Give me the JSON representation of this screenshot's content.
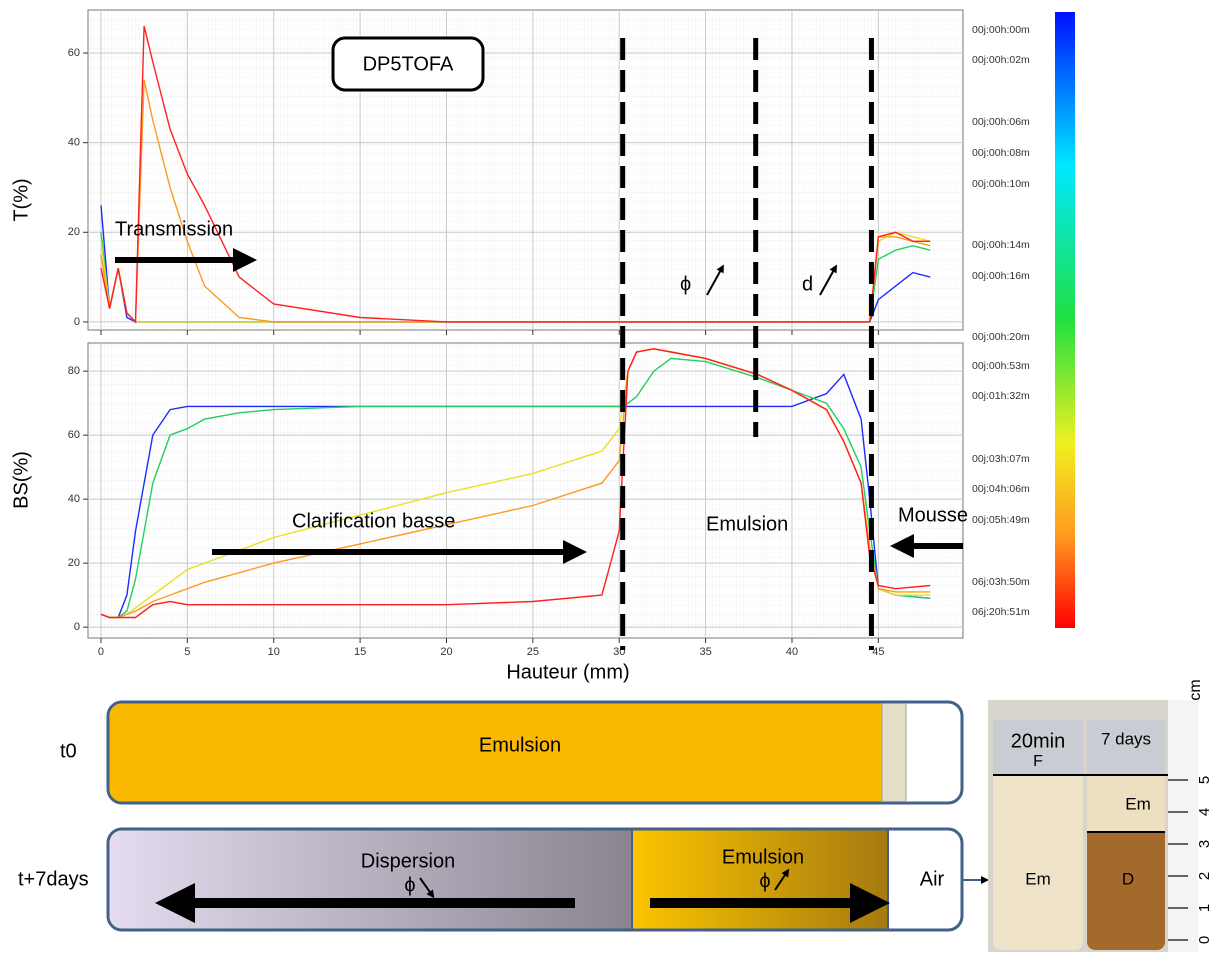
{
  "chart_data": [
    {
      "type": "line",
      "ylabel": "T(%)",
      "label": "DP5TOFA",
      "annotations": [
        "Transmission",
        "ϕ",
        "d"
      ],
      "xlim": [
        -0.75,
        49.9
      ],
      "ylim": [
        -1.8,
        69.6
      ],
      "yticks": [
        0,
        20,
        40,
        60
      ],
      "grid": true,
      "x": [
        0,
        0.5,
        1,
        1.5,
        2,
        2.5,
        3,
        4,
        5,
        6,
        8,
        10,
        15,
        20,
        30,
        40,
        44.5,
        45,
        46,
        47,
        48
      ],
      "series": [
        {
          "color": "#1a2cff",
          "values": [
            26,
            3,
            12,
            1,
            0,
            0,
            0,
            0,
            0,
            0,
            0,
            0,
            0,
            0,
            0,
            0,
            0,
            5,
            8,
            11,
            10
          ]
        },
        {
          "color": "#20d060",
          "values": [
            20,
            3,
            12,
            2,
            0,
            0,
            0,
            0,
            0,
            0,
            0,
            0,
            0,
            0,
            0,
            0,
            0,
            14,
            16,
            17,
            16
          ]
        },
        {
          "color": "#e8e020",
          "values": [
            18,
            3,
            12,
            2,
            0,
            0,
            0,
            0,
            0,
            0,
            0,
            0,
            0,
            0,
            0,
            0,
            0,
            18,
            20,
            19,
            18
          ]
        },
        {
          "color": "#ff9a20",
          "values": [
            15,
            3,
            12,
            2,
            0,
            54,
            45,
            30,
            18,
            8,
            1,
            0,
            0,
            0,
            0,
            0,
            0,
            19,
            19,
            18,
            17
          ]
        },
        {
          "color": "#ff2020",
          "values": [
            12,
            3,
            12,
            2,
            0,
            66,
            58,
            43,
            33,
            26,
            10,
            4,
            1,
            0,
            0,
            0,
            0,
            19,
            20,
            18,
            18
          ]
        }
      ]
    },
    {
      "type": "line",
      "ylabel": "BS(%)",
      "xlabel": "Hauteur (mm)",
      "annotations": [
        "Clarification basse",
        "Emulsion",
        "Mousse"
      ],
      "xlim": [
        -0.75,
        49.9
      ],
      "ylim": [
        -3.4,
        88.8
      ],
      "yticks": [
        0,
        20,
        40,
        60,
        80
      ],
      "xticks": [
        0,
        5,
        10,
        15,
        20,
        25,
        30,
        35,
        40,
        45
      ],
      "grid": true,
      "x": [
        0,
        0.5,
        1,
        1.5,
        2,
        3,
        4,
        5,
        6,
        8,
        10,
        15,
        20,
        25,
        29,
        30,
        30.5,
        31,
        32,
        33,
        35,
        38,
        40,
        42,
        43,
        44,
        44.5,
        45,
        46,
        48
      ],
      "series": [
        {
          "color": "#1a2cff",
          "values": [
            4,
            3,
            3,
            10,
            30,
            60,
            68,
            69,
            69,
            69,
            69,
            69,
            69,
            69,
            69,
            69,
            69,
            69,
            69,
            69,
            69,
            69,
            69,
            73,
            79,
            65,
            40,
            12,
            10,
            9
          ]
        },
        {
          "color": "#20d060",
          "values": [
            4,
            3,
            3,
            5,
            15,
            45,
            60,
            62,
            65,
            67,
            68,
            69,
            69,
            69,
            69,
            69,
            70,
            72,
            80,
            84,
            83,
            78,
            74,
            70,
            62,
            50,
            30,
            12,
            10,
            9
          ]
        },
        {
          "color": "#e8e020",
          "values": [
            4,
            3,
            3,
            4,
            6,
            10,
            14,
            18,
            20,
            24,
            28,
            35,
            42,
            48,
            55,
            62,
            80,
            86,
            87,
            86,
            84,
            79,
            74,
            68,
            58,
            45,
            25,
            12,
            10,
            10
          ]
        },
        {
          "color": "#ff9a20",
          "values": [
            4,
            3,
            3,
            4,
            5,
            8,
            10,
            12,
            14,
            17,
            20,
            26,
            32,
            38,
            45,
            52,
            80,
            86,
            87,
            86,
            84,
            79,
            74,
            68,
            58,
            45,
            25,
            12,
            11,
            11
          ]
        },
        {
          "color": "#ff2020",
          "values": [
            4,
            3,
            3,
            3,
            3,
            7,
            8,
            7,
            7,
            7,
            7,
            7,
            7,
            8,
            10,
            30,
            80,
            86,
            87,
            86,
            84,
            79,
            74,
            68,
            58,
            45,
            22,
            13,
            12,
            13
          ]
        }
      ]
    }
  ],
  "dividers": [
    30.2,
    37.9,
    44.6
  ],
  "colorbar": {
    "labels": [
      "00j:00h:00m",
      "00j:00h:02m",
      "00j:00h:06m",
      "00j:00h:08m",
      "00j:00h:10m",
      "00j:00h:14m",
      "00j:00h:16m",
      "00j:00h:20m",
      "00j:00h:53m",
      "00j:01h:32m",
      "00j:03h:07m",
      "00j:04h:06m",
      "00j:05h:49m",
      "06j:03h:50m",
      "06j:20h:51m"
    ]
  },
  "diagram": {
    "t0": {
      "label": "t0",
      "phase": "Emulsion"
    },
    "t7": {
      "label": "t+7days",
      "dispersion": "Dispersion",
      "phi1": "ϕ",
      "emulsion": "Emulsion",
      "phi2": "ϕ",
      "air": "Air"
    }
  },
  "photo": {
    "left": "20min",
    "foam": "F",
    "right": "7 days",
    "em_top": "Em",
    "em_left": "Em",
    "disp": "D",
    "unit": "cm",
    "ruler": [
      "0",
      "1",
      "2",
      "3",
      "4",
      "5"
    ]
  }
}
